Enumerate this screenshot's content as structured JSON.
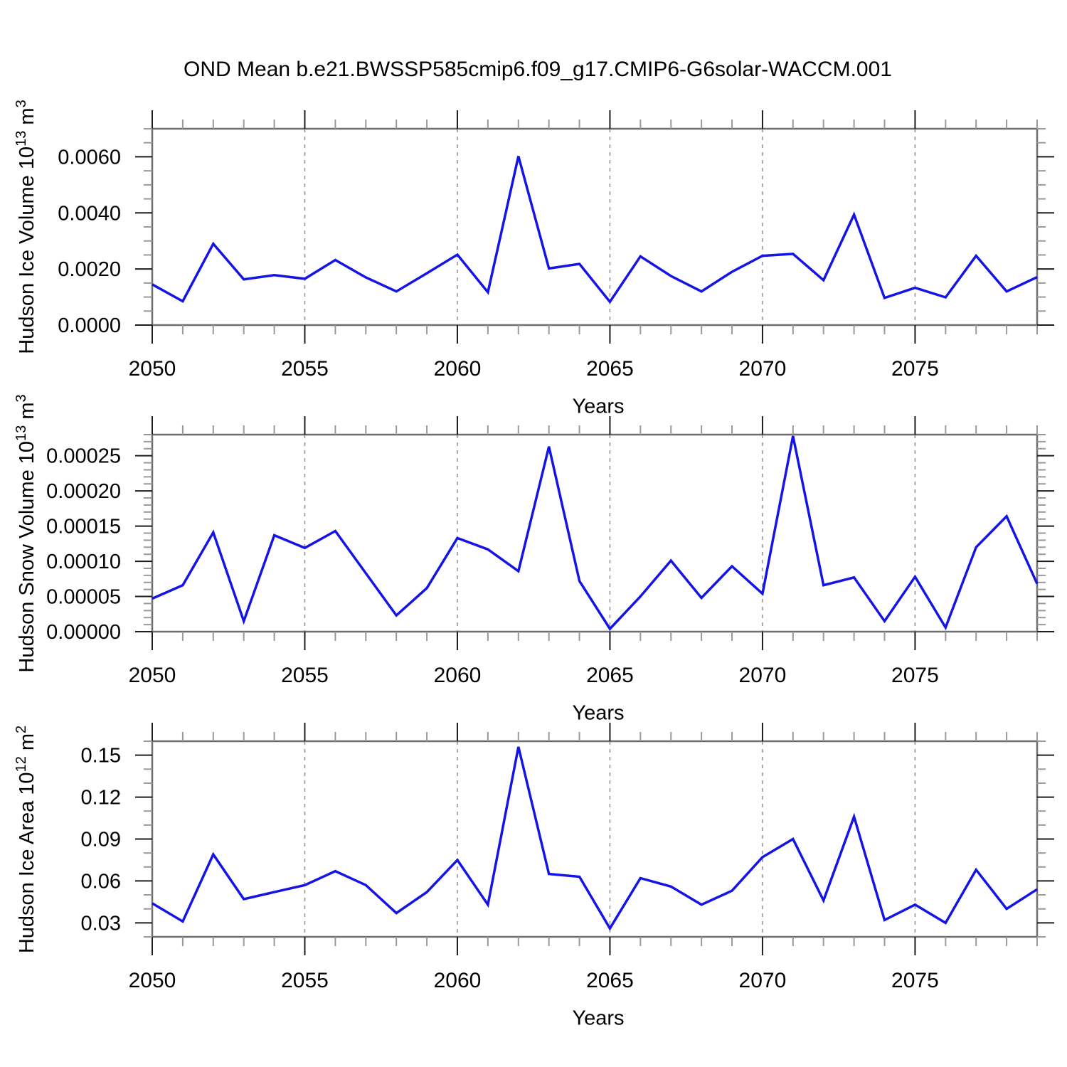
{
  "title": "OND Mean b.e21.BWSSP585cmip6.f09_g17.CMIP6-G6solar-WACCM.001",
  "style": {
    "background": "#ffffff",
    "line": "#1414e6",
    "frame": "#6e6e6e",
    "major_tick": "#1c1c1c",
    "minor_tick": "#999999",
    "gridline": "#909090",
    "text": "#000000"
  },
  "chart_data": [
    {
      "type": "line",
      "id": "hudson-ice-volume",
      "ylabel_base": "Hudson Ice Volume 10",
      "ylabel_sup": "13",
      "ylabel_mid": " m",
      "ylabel_sup2": "3",
      "xlabel": "Years",
      "x": {
        "label": "Years",
        "start": 2050,
        "end": 2079,
        "step": 1,
        "major_ticks": [
          2050,
          2055,
          2060,
          2065,
          2070,
          2075
        ],
        "gridlines": [
          2055,
          2060,
          2065,
          2070,
          2075
        ]
      },
      "ylim": [
        0,
        0.007
      ],
      "yticks": {
        "values": [
          0,
          0.002,
          0.004,
          0.006
        ],
        "labels": [
          "0.0000",
          "0.0020",
          "0.0040",
          "0.0060"
        ],
        "minor_step": 0.0005
      },
      "values": [
        0.00145,
        0.00085,
        0.0029,
        0.00163,
        0.00178,
        0.00165,
        0.00232,
        0.0017,
        0.0012,
        0.00185,
        0.00251,
        0.00117,
        0.00602,
        0.00202,
        0.00218,
        0.00083,
        0.00245,
        0.00175,
        0.0012,
        0.0019,
        0.00247,
        0.00254,
        0.0016,
        0.00394,
        0.00097,
        0.00133,
        0.00099,
        0.00247,
        0.0012,
        0.00171
      ]
    },
    {
      "type": "line",
      "id": "hudson-snow-volume",
      "ylabel_base": "Hudson Snow Volume 10",
      "ylabel_sup": "13",
      "ylabel_mid": " m",
      "ylabel_sup2": "3",
      "xlabel": "Years",
      "x": {
        "label": "Years",
        "start": 2050,
        "end": 2079,
        "step": 1,
        "major_ticks": [
          2050,
          2055,
          2060,
          2065,
          2070,
          2075
        ],
        "gridlines": [
          2055,
          2060,
          2065,
          2070,
          2075
        ]
      },
      "ylim": [
        0,
        0.00028
      ],
      "yticks": {
        "values": [
          0,
          5e-05,
          0.0001,
          0.00015,
          0.0002,
          0.00025
        ],
        "labels": [
          "0.00000",
          "0.00005",
          "0.00010",
          "0.00015",
          "0.00020",
          "0.00025"
        ],
        "minor_step": 1e-05
      },
      "values": [
        4.7e-05,
        6.6e-05,
        0.000141,
        1.5e-05,
        0.000137,
        0.000119,
        0.000143,
        8.3e-05,
        2.3e-05,
        6.2e-05,
        0.000133,
        0.000117,
        8.6e-05,
        0.000263,
        7.2e-05,
        4e-06,
        5e-05,
        0.000101,
        4.8e-05,
        9.3e-05,
        5.4e-05,
        0.000278,
        6.6e-05,
        7.7e-05,
        1.5e-05,
        7.8e-05,
        6e-06,
        0.00012,
        0.000164,
        6.8e-05
      ]
    },
    {
      "type": "line",
      "id": "hudson-ice-area",
      "ylabel_base": "Hudson Ice Area 10",
      "ylabel_sup": "12",
      "ylabel_mid": " m",
      "ylabel_sup2": "2",
      "xlabel": "Years",
      "x": {
        "label": "Years",
        "start": 2050,
        "end": 2079,
        "step": 1,
        "major_ticks": [
          2050,
          2055,
          2060,
          2065,
          2070,
          2075
        ],
        "gridlines": [
          2055,
          2060,
          2065,
          2070,
          2075
        ]
      },
      "ylim": [
        0.02,
        0.16
      ],
      "yticks": {
        "values": [
          0.03,
          0.06,
          0.09,
          0.12,
          0.15
        ],
        "labels": [
          "0.03",
          "0.06",
          "0.09",
          "0.12",
          "0.15"
        ],
        "minor_step": 0.01
      },
      "values": [
        0.044,
        0.031,
        0.079,
        0.047,
        0.052,
        0.057,
        0.067,
        0.057,
        0.037,
        0.052,
        0.075,
        0.043,
        0.156,
        0.065,
        0.063,
        0.026,
        0.062,
        0.056,
        0.043,
        0.053,
        0.077,
        0.09,
        0.046,
        0.106,
        0.032,
        0.043,
        0.03,
        0.068,
        0.04,
        0.054
      ]
    }
  ]
}
